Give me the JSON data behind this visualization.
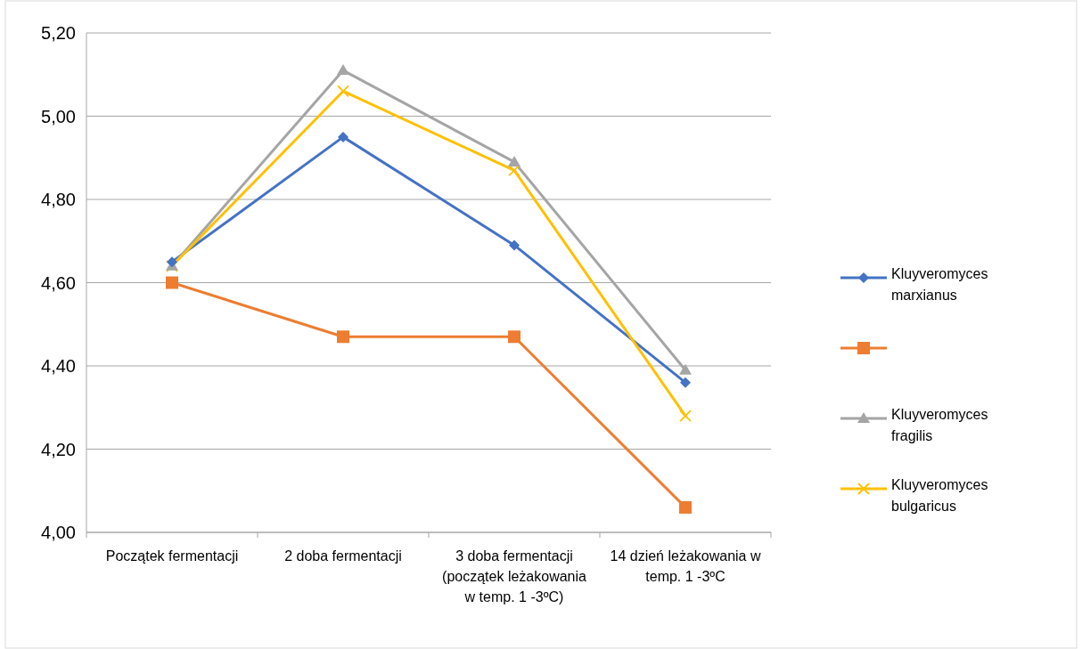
{
  "chart_data": {
    "type": "line",
    "categories": [
      "Początek fermentacji",
      "2 doba fermentacji",
      "3 doba fermentacji (początek leżakowania w temp. 1 -3ºC)",
      "14 dzień leżakowania w temp. 1 -3ºC"
    ],
    "series": [
      {
        "name": "Kluyveromyces marxianus",
        "color": "#4472c4",
        "marker": "diamond",
        "values": [
          4.65,
          4.95,
          4.69,
          4.36
        ]
      },
      {
        "color": "#ed7d31",
        "marker": "square",
        "values": [
          4.6,
          4.47,
          4.47,
          4.06
        ]
      },
      {
        "name": "Kluyveromyces fragilis",
        "color": "#a5a5a5",
        "marker": "triangle",
        "values": [
          4.64,
          5.11,
          4.89,
          4.39
        ]
      },
      {
        "name": "Kluyveromyces bulgaricus",
        "color": "#ffc000",
        "marker": "cross",
        "values": [
          4.64,
          5.06,
          4.87,
          4.28
        ]
      }
    ],
    "ylim": [
      4,
      5.2
    ],
    "yticks": [
      {
        "value": 4,
        "label": "4,00"
      },
      {
        "value": 4.2,
        "label": "4,20"
      },
      {
        "value": 4.4,
        "label": "4,40"
      },
      {
        "value": 4.6,
        "label": "4,60"
      },
      {
        "value": 4.8,
        "label": "4,80"
      },
      {
        "value": 5,
        "label": "5,00"
      },
      {
        "value": 5.2,
        "label": "5,20"
      }
    ],
    "grid": "y",
    "legend": "right",
    "line_style": "solid"
  }
}
